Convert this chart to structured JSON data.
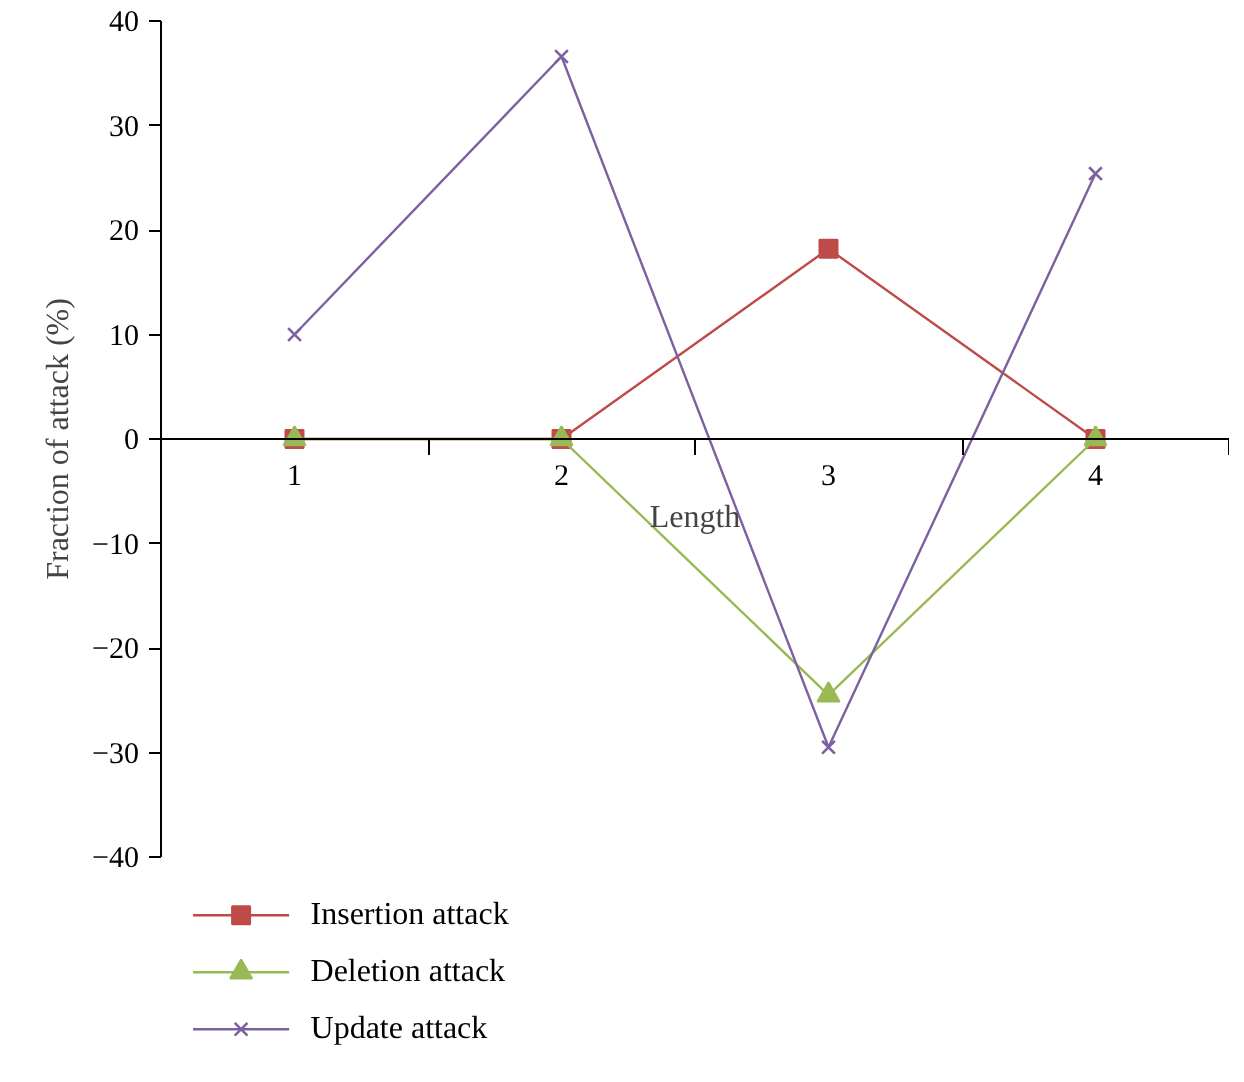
{
  "chart_data": {
    "type": "line",
    "xlabel": "Length",
    "ylabel": "Fraction of attack (%)",
    "categories": [
      "1",
      "2",
      "3",
      "4"
    ],
    "series": [
      {
        "name": "Insertion attack",
        "color": "#be4b48",
        "marker": "square",
        "values": [
          0,
          0,
          18.2,
          0
        ]
      },
      {
        "name": "Deletion attack",
        "color": "#98b954",
        "marker": "triangle",
        "values": [
          0,
          0,
          -24.5,
          0
        ]
      },
      {
        "name": "Update attack",
        "color": "#7d60a0",
        "marker": "cross",
        "values": [
          10,
          36.6,
          -29.5,
          25.4
        ]
      }
    ],
    "ylim": [
      -40,
      40
    ],
    "yticks": [
      {
        "value": -40,
        "label": "−40"
      },
      {
        "value": -30,
        "label": "−30"
      },
      {
        "value": -20,
        "label": "−20"
      },
      {
        "value": -10,
        "label": "−10"
      },
      0,
      10,
      20,
      30,
      40
    ],
    "grid": false,
    "legend": "bottom left",
    "line_style": "solid"
  }
}
